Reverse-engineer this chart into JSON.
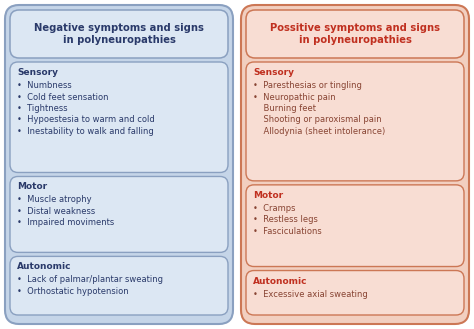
{
  "left_title": "Negative symptoms and signs\nin polyneuropathies",
  "right_title": "Possitive symptoms and signs\nin polyneuropathies",
  "left_bg": "#c5d5e8",
  "right_bg": "#f2cfc0",
  "left_box_bg": "#dce7f3",
  "right_box_bg": "#f8ddd3",
  "left_border": "#8aA0c0",
  "right_border": "#cc7755",
  "title_color_left": "#2a3a6a",
  "title_color_right": "#c03020",
  "heading_color_left": "#2a3a6a",
  "heading_color_right": "#c03020",
  "text_color_left": "#2a3a6a",
  "text_color_right": "#884433",
  "left_sections": [
    {
      "heading": "Sensory",
      "items": [
        "•  Numbness",
        "•  Cold feet sensation",
        "•  Tightness",
        "•  Hypoestesia to warm and cold",
        "•  Inestability to walk and falling"
      ]
    },
    {
      "heading": "Motor",
      "items": [
        "•  Muscle atrophy",
        "•  Distal weakness",
        "•  Impaired moviments"
      ]
    },
    {
      "heading": "Autonomic",
      "items": [
        "•  Lack of palmar/plantar sweating",
        "•  Orthostatic hypotension"
      ]
    }
  ],
  "right_sections": [
    {
      "heading": "Sensory",
      "items": [
        "•  Paresthesias or tingling",
        "•  Neuropathic pain",
        "    Burning feet",
        "    Shooting or paroxismal pain",
        "    Allodynia (sheet intolerance)"
      ]
    },
    {
      "heading": "Motor",
      "items": [
        "•  Cramps",
        "•  Restless legs",
        "•  Fasciculations"
      ]
    },
    {
      "heading": "Autonomic",
      "items": [
        "•  Excessive axial sweating"
      ]
    }
  ],
  "fig_w": 4.74,
  "fig_h": 3.29,
  "dpi": 100
}
